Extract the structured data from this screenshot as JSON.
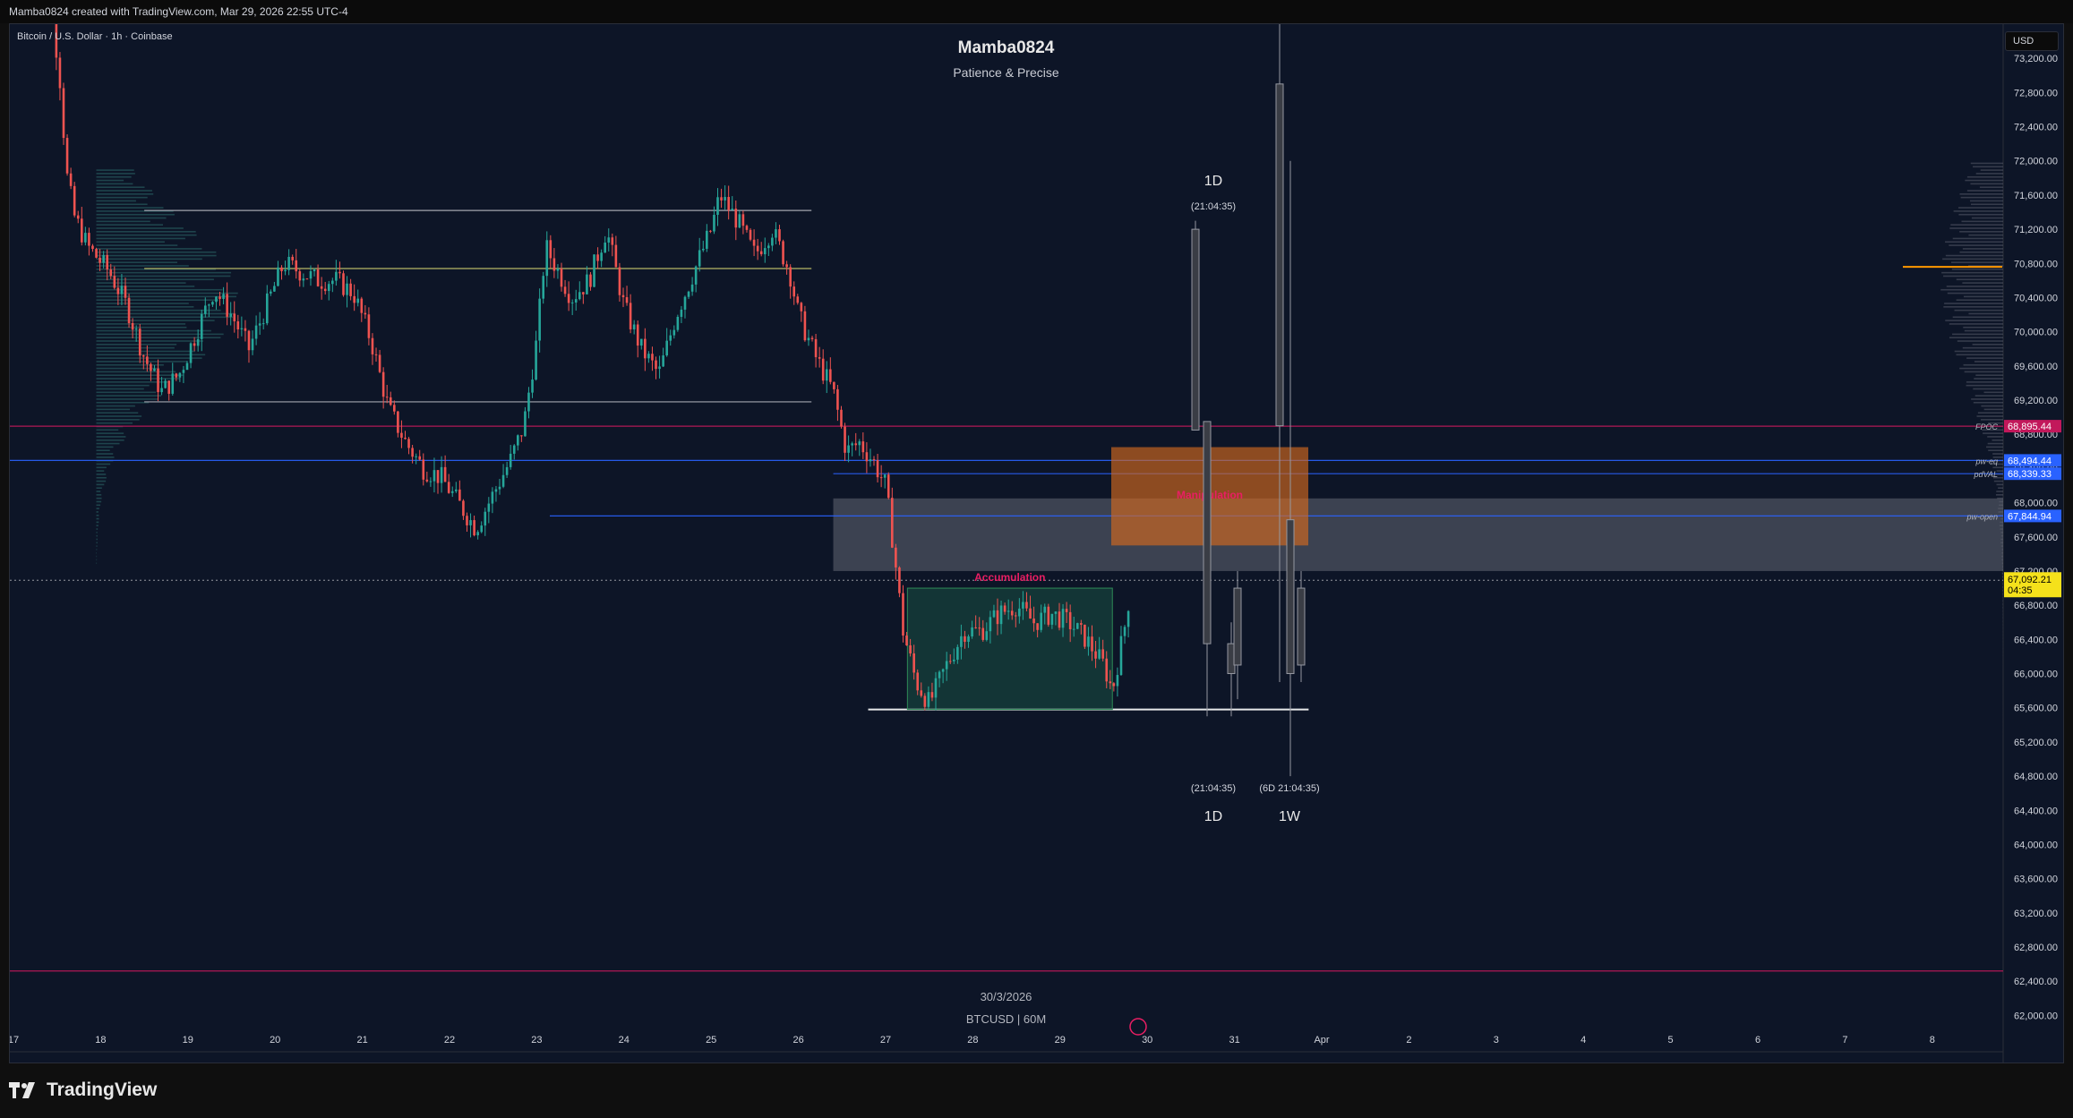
{
  "header": {
    "attribution": "Mamba0824 created with TradingView.com, Mar 29, 2026 22:55 UTC-4"
  },
  "chart": {
    "symbol_line": "Bitcoin / U.S. Dollar · 1h · Coinbase",
    "title": "Mamba0824",
    "subtitle": "Patience &  Precise",
    "watermark_date": "30/3/2026",
    "watermark_symbol": "BTCUSD | 60M",
    "currency": "USD"
  },
  "footer": {
    "brand": "TradingView"
  },
  "chart_data": {
    "type": "candlestick",
    "instrument": "BTCUSD",
    "timeframe": "1h",
    "ylim": [
      61700,
      73600
    ],
    "y_ticks": [
      62000,
      62400,
      62800,
      63200,
      63600,
      64000,
      64400,
      64800,
      65200,
      65600,
      66000,
      66400,
      66800,
      67200,
      67600,
      68000,
      68400,
      68800,
      69200,
      69600,
      70000,
      70400,
      70800,
      71200,
      71600,
      72000,
      72400,
      72800,
      73200
    ],
    "y_tick_labels": [
      "62,000.00",
      "62,400.00",
      "62,800.00",
      "63,200.00",
      "63,600.00",
      "64,000.00",
      "64,400.00",
      "64,800.00",
      "65,200.00",
      "65,600.00",
      "66,000.00",
      "66,400.00",
      "66,800.00",
      "67,200.00",
      "67,600.00",
      "68,000.00",
      "68,400.00",
      "68,800.00",
      "69,200.00",
      "69,600.00",
      "70,000.00",
      "70,400.00",
      "70,800.00",
      "71,200.00",
      "71,600.00",
      "72,000.00",
      "72,400.00",
      "72,800.00",
      "73,200.00"
    ],
    "x_ticks": [
      "17",
      "18",
      "19",
      "20",
      "21",
      "22",
      "23",
      "24",
      "25",
      "26",
      "27",
      "28",
      "29",
      "30",
      "31",
      "Apr",
      "2",
      "3",
      "4",
      "5",
      "6",
      "7",
      "8"
    ],
    "x_tick_index": [
      0,
      1,
      2,
      3,
      4,
      5,
      6,
      7,
      8,
      9,
      10,
      11,
      12,
      13,
      14,
      15,
      16,
      17,
      18,
      19,
      20,
      21,
      22
    ],
    "price_anchors": [
      [
        17.2,
        74200
      ],
      [
        17.45,
        73700
      ],
      [
        17.55,
        72800
      ],
      [
        17.6,
        71900
      ],
      [
        17.7,
        71350
      ],
      [
        17.85,
        71000
      ],
      [
        18.1,
        70700
      ],
      [
        18.3,
        70300
      ],
      [
        18.5,
        69700
      ],
      [
        18.7,
        69300
      ],
      [
        18.9,
        69500
      ],
      [
        19.1,
        70000
      ],
      [
        19.3,
        70500
      ],
      [
        19.5,
        70200
      ],
      [
        19.7,
        69800
      ],
      [
        19.9,
        70300
      ],
      [
        20.1,
        70800
      ],
      [
        20.3,
        70700
      ],
      [
        20.5,
        70600
      ],
      [
        20.7,
        70600
      ],
      [
        20.9,
        70450
      ],
      [
        21.1,
        69900
      ],
      [
        21.3,
        69100
      ],
      [
        21.5,
        68700
      ],
      [
        21.7,
        68400
      ],
      [
        21.9,
        68300
      ],
      [
        22.1,
        68000
      ],
      [
        22.3,
        67700
      ],
      [
        22.5,
        68100
      ],
      [
        22.7,
        68500
      ],
      [
        22.85,
        68900
      ],
      [
        23.0,
        69900
      ],
      [
        23.1,
        71000
      ],
      [
        23.25,
        70700
      ],
      [
        23.4,
        70400
      ],
      [
        23.6,
        70600
      ],
      [
        23.8,
        71200
      ],
      [
        24.0,
        70300
      ],
      [
        24.2,
        69800
      ],
      [
        24.4,
        69500
      ],
      [
        24.6,
        70200
      ],
      [
        24.8,
        70700
      ],
      [
        25.0,
        71200
      ],
      [
        25.1,
        71600
      ],
      [
        25.3,
        71300
      ],
      [
        25.5,
        70900
      ],
      [
        25.7,
        71200
      ],
      [
        25.9,
        70700
      ],
      [
        26.0,
        70200
      ],
      [
        26.2,
        69700
      ],
      [
        26.4,
        69300
      ],
      [
        26.55,
        68600
      ],
      [
        26.7,
        68700
      ],
      [
        26.85,
        68500
      ],
      [
        27.0,
        68200
      ],
      [
        27.1,
        67400
      ],
      [
        27.2,
        66500
      ],
      [
        27.35,
        65900
      ],
      [
        27.5,
        65650
      ],
      [
        27.7,
        66100
      ],
      [
        27.9,
        66500
      ],
      [
        28.1,
        66500
      ],
      [
        28.3,
        66700
      ],
      [
        28.5,
        66800
      ],
      [
        28.7,
        66600
      ],
      [
        28.9,
        66700
      ],
      [
        29.1,
        66600
      ],
      [
        29.3,
        66400
      ],
      [
        29.5,
        66100
      ],
      [
        29.6,
        65800
      ],
      [
        29.75,
        66600
      ],
      [
        29.82,
        67092
      ]
    ],
    "htf_candles": [
      {
        "label": "1D",
        "open": 68850,
        "high": 71300,
        "low": 68850,
        "close": 71200
      },
      {
        "label": "1D",
        "open": 68950,
        "high": 68950,
        "low": 65500,
        "close": 66350
      },
      {
        "label": "1D",
        "open": 66350,
        "high": 66600,
        "low": 65500,
        "close": 66000
      },
      {
        "label": "1D",
        "open": 66100,
        "high": 67200,
        "low": 65700,
        "close": 67000
      },
      {
        "label": "1W",
        "open": 68900,
        "high": 73800,
        "low": 65900,
        "close": 72900
      },
      {
        "label": "1W",
        "open": 67800,
        "high": 72000,
        "low": 64800,
        "close": 66000
      },
      {
        "label": "1W",
        "open": 67000,
        "high": 67200,
        "low": 65900,
        "close": 66100
      }
    ],
    "htf_labels": {
      "top_1d": "1D",
      "top_1d_timer": "(21:04:35)",
      "bottom_1d_timer": "(21:04:35)",
      "bottom_1w_timer": "(6D 21:04:35)",
      "bottom_1d": "1D",
      "bottom_1w": "1W"
    },
    "levels": [
      {
        "price": 71420,
        "color": "#b2b5be"
      },
      {
        "price": 70740,
        "color": "#c8c86e"
      },
      {
        "price": 69180,
        "color": "#b2b5be"
      },
      {
        "price": 68895.44,
        "color": "#c2185b",
        "tag": "FPOC",
        "value": "68,895.44"
      },
      {
        "price": 68494.44,
        "color": "#2962ff",
        "tag": "pw-eq",
        "value": "68,494.44"
      },
      {
        "price": 68339.33,
        "color": "#2962ff",
        "tag": "pdVAL",
        "value": "68,339.33"
      },
      {
        "price": 67844.94,
        "color": "#2962ff",
        "tag": "pw-open",
        "value": "67,844.94"
      },
      {
        "price": 65580,
        "color": "#ffffff"
      },
      {
        "price": 62520,
        "color": "#c2185b"
      }
    ],
    "current_price": {
      "value": "67,092.21",
      "countdown": "04:35",
      "color": "#f5e11b"
    },
    "zones": [
      {
        "name": "accumulation",
        "label": "Accumulation",
        "from_day": 27.25,
        "to_day": 29.6,
        "low": 65580,
        "high": 67000,
        "color": "#1b5e49"
      },
      {
        "name": "manipulation",
        "label": "Manipulation",
        "from_day": 28.2,
        "to_day": 31.0,
        "low": 67500,
        "high": 68650,
        "color": "#d2691e"
      },
      {
        "name": "gray-band",
        "from_day": 26.4,
        "to_day": 99,
        "low": 67200,
        "high": 68050,
        "color": "#9598a1"
      }
    ],
    "xlabel": "",
    "ylabel": ""
  }
}
